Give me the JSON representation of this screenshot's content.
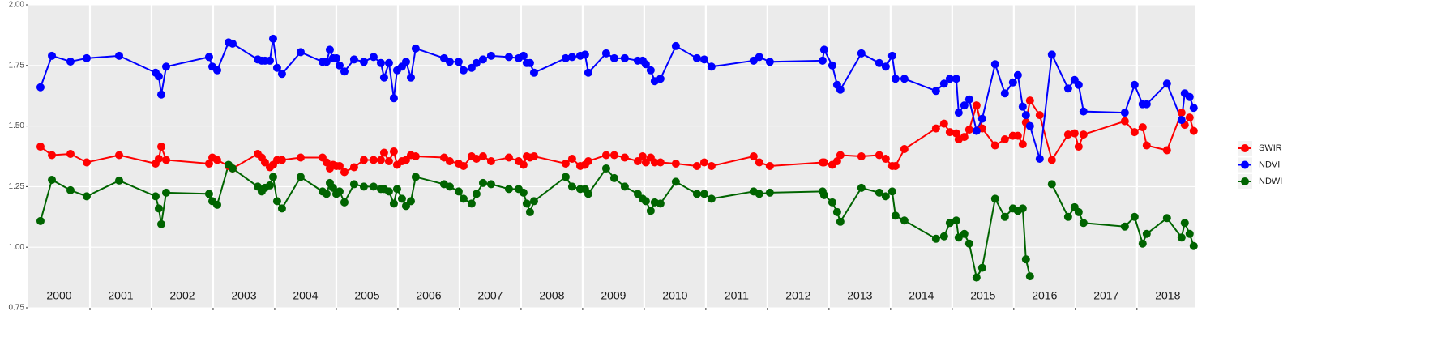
{
  "chart_data": {
    "type": "line",
    "x": [
      2000.197,
      2000.382,
      2000.684,
      2000.947,
      2001.474,
      2002.066,
      2002.118,
      2002.158,
      2002.237,
      2002.934,
      2002.987,
      2003.066,
      2003.25,
      2003.316,
      2003.724,
      2003.789,
      2003.842,
      2003.921,
      2003.974,
      2004.039,
      2004.118,
      2004.421,
      2004.776,
      2004.842,
      2004.895,
      2004.947,
      2005.0,
      2005.053,
      2005.132,
      2005.289,
      2005.447,
      2005.605,
      2005.724,
      2005.776,
      2005.855,
      2005.934,
      2005.987,
      2006.066,
      2006.132,
      2006.211,
      2006.289,
      2006.75,
      2006.842,
      2006.987,
      2007.066,
      2007.197,
      2007.276,
      2007.382,
      2007.513,
      2007.803,
      2007.961,
      2008.039,
      2008.092,
      2008.145,
      2008.211,
      2008.724,
      2008.829,
      2008.961,
      2009.039,
      2009.092,
      2009.382,
      2009.513,
      2009.684,
      2009.895,
      2009.974,
      2010.026,
      2010.105,
      2010.171,
      2010.263,
      2010.513,
      2010.855,
      2010.974,
      2011.092,
      2011.776,
      2011.868,
      2012.039,
      2012.895,
      2012.921,
      2013.053,
      2013.132,
      2013.184,
      2013.526,
      2013.816,
      2013.921,
      2014.026,
      2014.079,
      2014.224,
      2014.737,
      2014.868,
      2014.961,
      2015.066,
      2015.105,
      2015.197,
      2015.276,
      2015.395,
      2015.487,
      2015.697,
      2015.855,
      2015.987,
      2016.066,
      2016.145,
      2016.197,
      2016.263,
      2016.421,
      2016.618,
      2016.882,
      2016.987,
      2017.053,
      2017.132,
      2017.803,
      2017.961,
      2018.092,
      2018.158,
      2018.487,
      2018.724,
      2018.776,
      2018.855,
      2018.921
    ],
    "series": [
      {
        "name": "SWIR",
        "color": "#ff0000",
        "values": [
          1.415,
          1.38,
          1.385,
          1.35,
          1.38,
          1.345,
          1.365,
          1.415,
          1.36,
          1.345,
          1.37,
          1.36,
          1.335,
          1.325,
          1.385,
          1.37,
          1.35,
          1.33,
          1.34,
          1.36,
          1.36,
          1.37,
          1.37,
          1.35,
          1.325,
          1.34,
          1.335,
          1.335,
          1.31,
          1.33,
          1.36,
          1.36,
          1.36,
          1.39,
          1.355,
          1.395,
          1.34,
          1.355,
          1.36,
          1.38,
          1.375,
          1.37,
          1.355,
          1.345,
          1.335,
          1.375,
          1.365,
          1.375,
          1.355,
          1.37,
          1.355,
          1.34,
          1.375,
          1.37,
          1.375,
          1.345,
          1.365,
          1.335,
          1.34,
          1.355,
          1.38,
          1.38,
          1.37,
          1.355,
          1.375,
          1.35,
          1.37,
          1.35,
          1.35,
          1.345,
          1.335,
          1.35,
          1.335,
          1.375,
          1.35,
          1.335,
          1.35,
          1.35,
          1.34,
          1.355,
          1.38,
          1.375,
          1.38,
          1.365,
          1.335,
          1.335,
          1.405,
          1.49,
          1.51,
          1.475,
          1.47,
          1.445,
          1.455,
          1.485,
          1.585,
          1.49,
          1.42,
          1.445,
          1.46,
          1.46,
          1.425,
          1.515,
          1.605,
          1.545,
          1.36,
          1.465,
          1.47,
          1.415,
          1.465,
          1.52,
          1.475,
          1.495,
          1.42,
          1.4,
          1.555,
          1.505,
          1.535,
          1.48
        ]
      },
      {
        "name": "NDVI",
        "color": "#0000ff",
        "values": [
          1.66,
          1.79,
          1.766,
          1.78,
          1.79,
          1.72,
          1.705,
          1.63,
          1.745,
          1.785,
          1.745,
          1.73,
          1.845,
          1.84,
          1.775,
          1.77,
          1.77,
          1.77,
          1.86,
          1.74,
          1.715,
          1.805,
          1.765,
          1.765,
          1.815,
          1.78,
          1.78,
          1.75,
          1.725,
          1.775,
          1.765,
          1.785,
          1.76,
          1.7,
          1.76,
          1.615,
          1.73,
          1.745,
          1.765,
          1.7,
          1.82,
          1.78,
          1.765,
          1.765,
          1.73,
          1.74,
          1.76,
          1.775,
          1.79,
          1.785,
          1.78,
          1.79,
          1.76,
          1.76,
          1.72,
          1.78,
          1.785,
          1.79,
          1.795,
          1.72,
          1.8,
          1.78,
          1.78,
          1.77,
          1.77,
          1.755,
          1.73,
          1.685,
          1.695,
          1.83,
          1.78,
          1.775,
          1.745,
          1.77,
          1.785,
          1.765,
          1.77,
          1.815,
          1.75,
          1.67,
          1.65,
          1.8,
          1.76,
          1.745,
          1.79,
          1.695,
          1.695,
          1.645,
          1.675,
          1.695,
          1.695,
          1.555,
          1.585,
          1.61,
          1.48,
          1.53,
          1.755,
          1.635,
          1.68,
          1.71,
          1.58,
          1.545,
          1.5,
          1.365,
          1.795,
          1.655,
          1.69,
          1.67,
          1.56,
          1.555,
          1.67,
          1.59,
          1.59,
          1.675,
          1.525,
          1.635,
          1.62,
          1.575
        ]
      },
      {
        "name": "NDWI",
        "color": "#006400",
        "values": [
          1.108,
          1.278,
          1.235,
          1.21,
          1.275,
          1.21,
          1.16,
          1.095,
          1.225,
          1.22,
          1.19,
          1.175,
          1.34,
          1.325,
          1.25,
          1.23,
          1.245,
          1.255,
          1.29,
          1.19,
          1.16,
          1.29,
          1.23,
          1.22,
          1.265,
          1.245,
          1.22,
          1.23,
          1.185,
          1.26,
          1.25,
          1.25,
          1.24,
          1.24,
          1.23,
          1.18,
          1.24,
          1.2,
          1.17,
          1.19,
          1.29,
          1.26,
          1.25,
          1.23,
          1.2,
          1.18,
          1.22,
          1.265,
          1.26,
          1.24,
          1.24,
          1.225,
          1.18,
          1.145,
          1.19,
          1.29,
          1.25,
          1.24,
          1.24,
          1.22,
          1.325,
          1.285,
          1.25,
          1.22,
          1.2,
          1.19,
          1.15,
          1.185,
          1.18,
          1.27,
          1.22,
          1.22,
          1.2,
          1.23,
          1.22,
          1.225,
          1.23,
          1.215,
          1.185,
          1.145,
          1.105,
          1.245,
          1.225,
          1.21,
          1.23,
          1.13,
          1.11,
          1.035,
          1.045,
          1.1,
          1.11,
          1.04,
          1.055,
          1.015,
          0.875,
          0.915,
          1.2,
          1.125,
          1.16,
          1.15,
          1.16,
          0.95,
          0.88,
          null,
          1.26,
          1.125,
          1.165,
          1.145,
          1.1,
          1.085,
          1.125,
          1.015,
          1.055,
          1.12,
          1.04,
          1.1,
          1.055,
          1.005
        ]
      }
    ],
    "xlim": [
      2000,
      2018.95
    ],
    "xticks": [
      2001,
      2002,
      2003,
      2004,
      2005,
      2006,
      2007,
      2008,
      2009,
      2010,
      2011,
      2012,
      2013,
      2014,
      2015,
      2016,
      2017,
      2018
    ],
    "ylim": [
      0.75,
      2.0
    ],
    "yticks": [
      {
        "value": 0.75,
        "label": "0.75"
      },
      {
        "value": 1.0,
        "label": "1.00"
      },
      {
        "value": 1.25,
        "label": "1.25"
      },
      {
        "value": 1.5,
        "label": "1.50"
      },
      {
        "value": 1.75,
        "label": "1.75"
      },
      {
        "value": 2.0,
        "label": "2.00"
      }
    ],
    "grid": true,
    "legend": "right",
    "annotations": [
      {
        "text": "2000",
        "x": 2000.5
      },
      {
        "text": "2001",
        "x": 2001.5
      },
      {
        "text": "2002",
        "x": 2002.5
      },
      {
        "text": "2003",
        "x": 2003.5
      },
      {
        "text": "2004",
        "x": 2004.5
      },
      {
        "text": "2005",
        "x": 2005.5
      },
      {
        "text": "2006",
        "x": 2006.5
      },
      {
        "text": "2007",
        "x": 2007.5
      },
      {
        "text": "2008",
        "x": 2008.5
      },
      {
        "text": "2009",
        "x": 2009.5
      },
      {
        "text": "2010",
        "x": 2010.5
      },
      {
        "text": "2011",
        "x": 2011.5
      },
      {
        "text": "2012",
        "x": 2012.5
      },
      {
        "text": "2013",
        "x": 2013.5
      },
      {
        "text": "2014",
        "x": 2014.5
      },
      {
        "text": "2015",
        "x": 2015.5
      },
      {
        "text": "2016",
        "x": 2016.5
      },
      {
        "text": "2017",
        "x": 2017.5
      },
      {
        "text": "2018",
        "x": 2018.5
      }
    ]
  }
}
